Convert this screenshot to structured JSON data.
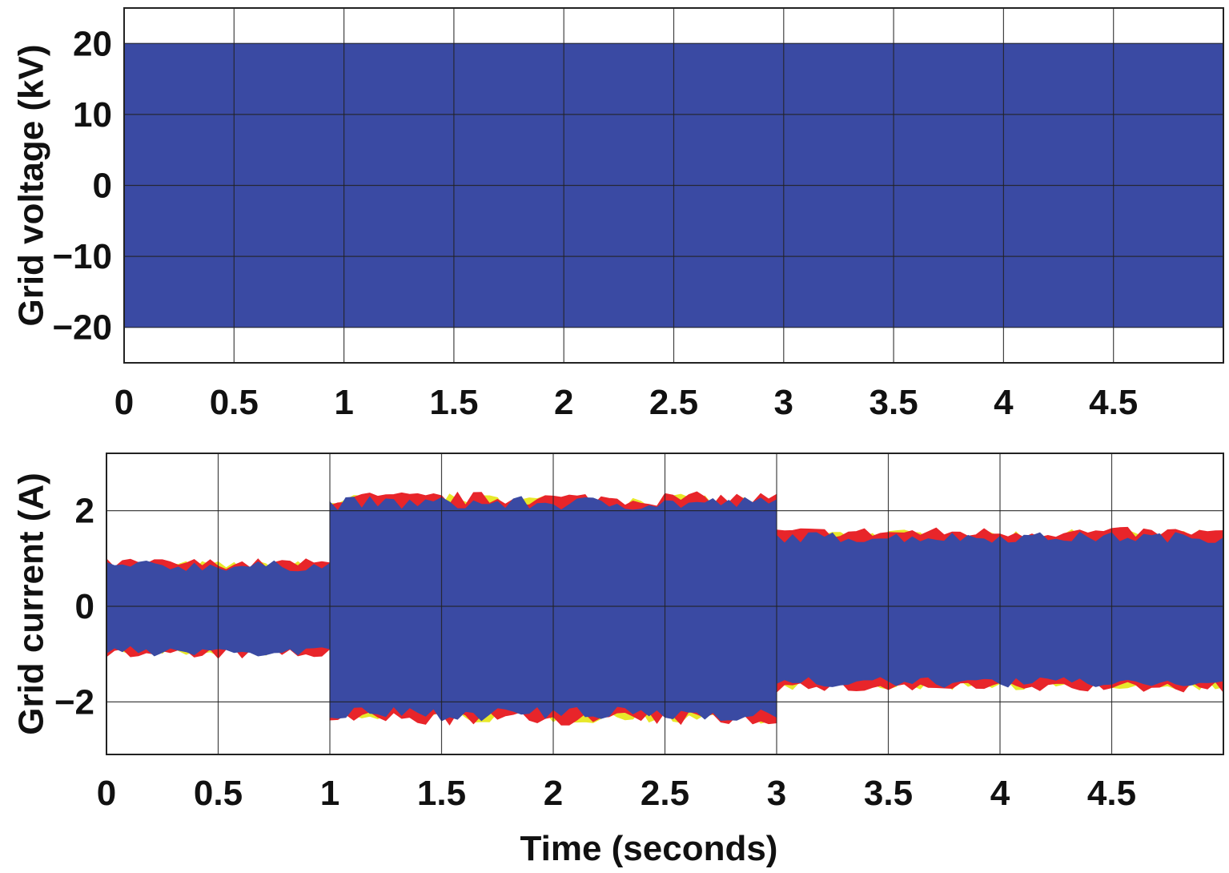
{
  "chart_data": [
    {
      "type": "line",
      "title": "",
      "xlabel": "",
      "ylabel": "Grid voltage (kV)",
      "xlim": [
        0,
        5
      ],
      "ylim": [
        -25,
        25
      ],
      "grid": true,
      "xticks": [
        0,
        0.5,
        1,
        1.5,
        2,
        2.5,
        3,
        3.5,
        4,
        4.5
      ],
      "xtick_labels": [
        "0",
        "0.5",
        "1",
        "1.5",
        "2",
        "2.5",
        "3",
        "3.5",
        "4",
        "4.5"
      ],
      "yticks": [
        20,
        10,
        0,
        -10,
        -20
      ],
      "ytick_labels": [
        "20",
        "10",
        "0",
        "−10",
        "−20"
      ],
      "series": [
        {
          "color": "#3a4aa3",
          "segments": [
            {
              "x": [
                0,
                5
              ],
              "upper": 20,
              "lower": -20
            }
          ]
        }
      ]
    },
    {
      "type": "line",
      "title": "",
      "xlabel": "Time (seconds)",
      "ylabel": "Grid current (A)",
      "xlim": [
        0,
        5
      ],
      "ylim": [
        -3.1,
        3.2
      ],
      "grid": true,
      "xticks": [
        0,
        0.5,
        1,
        1.5,
        2,
        2.5,
        3,
        3.5,
        4,
        4.5
      ],
      "xtick_labels": [
        "0",
        "0.5",
        "1",
        "1.5",
        "2",
        "2.5",
        "3",
        "3.5",
        "4",
        "4.5"
      ],
      "yticks": [
        2,
        0,
        -2
      ],
      "ytick_labels": [
        "2",
        "0",
        "−2"
      ],
      "series": [
        {
          "color": "#e8e82a",
          "segments": [
            {
              "x": [
                0,
                1
              ],
              "upper": 0.8,
              "lower": -0.9
            },
            {
              "x": [
                1,
                3
              ],
              "upper": 2.15,
              "lower": -2.25
            },
            {
              "x": [
                3,
                5
              ],
              "upper": 1.45,
              "lower": -1.6
            }
          ]
        },
        {
          "color": "#e8252a",
          "segments": [
            {
              "x": [
                0,
                1
              ],
              "upper": 0.85,
              "lower": -0.95
            },
            {
              "x": [
                1,
                3
              ],
              "upper": 2.2,
              "lower": -2.3
            },
            {
              "x": [
                3,
                5
              ],
              "upper": 1.5,
              "lower": -1.65
            }
          ]
        },
        {
          "color": "#3a4aa3",
          "segments": [
            {
              "x": [
                0,
                1
              ],
              "upper": 0.8,
              "lower": -0.9
            },
            {
              "x": [
                1,
                3
              ],
              "upper": 2.1,
              "lower": -2.2
            },
            {
              "x": [
                3,
                5
              ],
              "upper": 1.4,
              "lower": -1.55
            }
          ]
        }
      ]
    }
  ]
}
